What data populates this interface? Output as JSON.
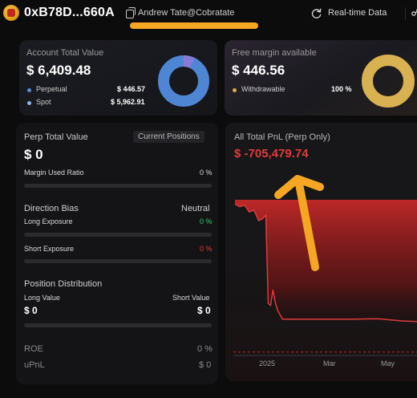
{
  "header": {
    "address": "0xB78D...660A",
    "alias": "Andrew Tate@Cobratate",
    "realtime_label": "Real-time Data"
  },
  "account": {
    "title": "Account Total Value",
    "value": "$ 6,409.48",
    "items": [
      {
        "label": "Perpetual",
        "value": "$ 446.57",
        "color": "#5b8dd8"
      },
      {
        "label": "Spot",
        "value": "$ 5,962.91",
        "color": "#8fb4e8"
      }
    ],
    "donut": {
      "fraction": 0.0697,
      "primary": "#5b8dd8",
      "secondary": "#8a7ad8"
    }
  },
  "free_margin": {
    "title": "Free margin available",
    "value": "$ 446.56",
    "items": [
      {
        "label": "Withdrawable",
        "value": "100 %",
        "color": "#d8b152"
      }
    ],
    "donut": {
      "fraction": 1.0,
      "color": "#d8b152"
    }
  },
  "perp": {
    "title": "Perp Total Value",
    "badge": "Current Positions",
    "value": "$ 0",
    "margin_used": {
      "label": "Margin Used Ratio",
      "value": "0 %",
      "fraction": 0
    },
    "direction": {
      "label": "Direction Bias",
      "value": "Neutral"
    },
    "long_exposure": {
      "label": "Long Exposure",
      "value": "0 %",
      "color": "#2ecc71",
      "fraction": 0
    },
    "short_exposure": {
      "label": "Short Exposure",
      "value": "0 %",
      "color": "#e23b3b",
      "fraction": 0
    },
    "distribution": {
      "title": "Position Distribution",
      "long_label": "Long Value",
      "short_label": "Short Value",
      "long_value": "$ 0",
      "short_value": "$ 0"
    },
    "roe": {
      "label": "ROE",
      "value": "0 %"
    },
    "upnl": {
      "label": "uPnL",
      "value": "$ 0"
    }
  },
  "pnl": {
    "title": "All Total PnL (Perp Only)",
    "value": "$ -705,479.74",
    "value_color": "#e03a3a"
  },
  "chart_data": {
    "type": "area",
    "title": "All Total PnL (Perp Only)",
    "xlabel": "",
    "ylabel": "",
    "x_ticks": [
      "2025",
      "Mar",
      "May"
    ],
    "series": [
      {
        "color": "#e03a3a",
        "points": [
          {
            "x": 0,
            "y": -25000
          },
          {
            "x": 4,
            "y": -40000
          },
          {
            "x": 8,
            "y": -30000
          },
          {
            "x": 12,
            "y": -70000
          },
          {
            "x": 16,
            "y": -60000
          },
          {
            "x": 20,
            "y": -120000
          },
          {
            "x": 23,
            "y": -110000
          },
          {
            "x": 26,
            "y": -90000
          },
          {
            "x": 28,
            "y": -600000
          },
          {
            "x": 30,
            "y": -610000
          },
          {
            "x": 32,
            "y": -520000
          },
          {
            "x": 34,
            "y": -595000
          },
          {
            "x": 36,
            "y": -640000
          },
          {
            "x": 40,
            "y": -690000
          },
          {
            "x": 60,
            "y": -690000
          },
          {
            "x": 80,
            "y": -690000
          },
          {
            "x": 100,
            "y": -690000
          },
          {
            "x": 120,
            "y": -688000
          },
          {
            "x": 140,
            "y": -700000
          },
          {
            "x": 160,
            "y": -705479.74
          }
        ]
      }
    ],
    "ylim": [
      -900000,
      0
    ],
    "dashed_line_y": -880000,
    "grid": false
  }
}
